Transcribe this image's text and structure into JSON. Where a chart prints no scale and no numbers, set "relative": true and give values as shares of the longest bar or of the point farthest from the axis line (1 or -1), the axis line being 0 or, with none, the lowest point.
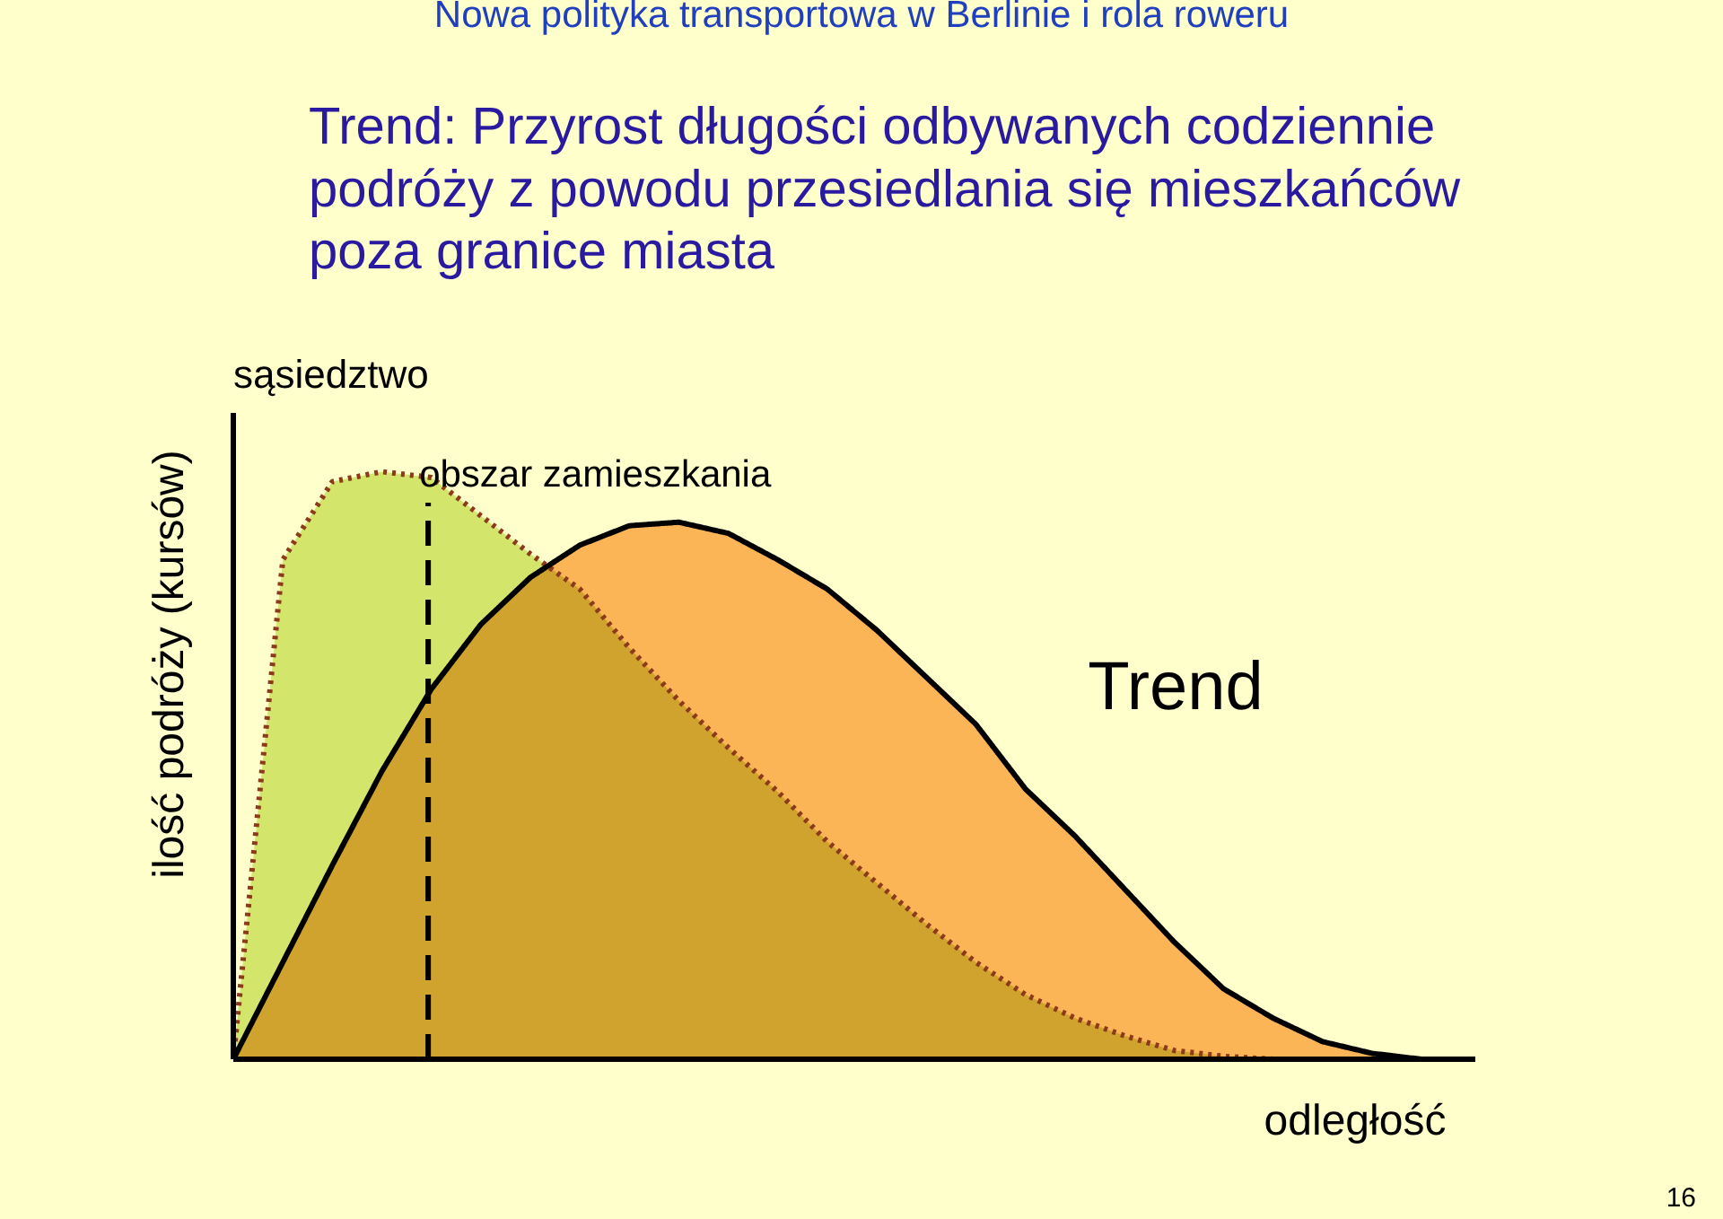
{
  "chart_data": {
    "type": "area",
    "title": "Nowa polityka transportowa w Berlinie i rola roweru",
    "subtitle": "Trend: Przyrost długości odbywanych codziennie\npodróży z powodu przesiedlania się mieszkańców\npoza granice miasta",
    "xlabel": "odległość",
    "ylabel": "ilość podróży (kursów)",
    "relative": true,
    "categories": [
      null,
      null,
      null,
      null,
      null,
      null,
      null,
      null,
      null,
      null,
      null,
      null,
      null,
      null,
      null,
      null,
      null,
      null,
      null,
      null,
      null,
      null,
      null,
      null,
      null
    ],
    "series": [
      {
        "color": "#d4e56c",
        "line_style": "dotted",
        "values": [
          0,
          0.85,
          0.983,
          1,
          0.99,
          0.925,
          0.86,
          0.8,
          0.7,
          0.61,
          0.53,
          0.455,
          0.37,
          0.3,
          0.23,
          0.165,
          0.11,
          0.07,
          0.04,
          0.015,
          0.005,
          0,
          0,
          0,
          0
        ]
      },
      {
        "color": "#fbb56c",
        "line_style": "solid",
        "values": [
          0,
          0.165,
          0.33,
          0.49,
          0.63,
          0.74,
          0.82,
          0.875,
          0.908,
          0.914,
          0.895,
          0.85,
          0.8,
          0.73,
          0.65,
          0.57,
          0.46,
          0.38,
          0.29,
          0.2,
          0.12,
          0.07,
          0.03,
          0.01,
          0
        ]
      }
    ],
    "ref_lines": [
      {
        "axis": "x",
        "label": "obszar zamieszkania",
        "line_style": "dashed"
      }
    ],
    "annotations": [
      "sąsiedztwo",
      "Trend",
      "16"
    ]
  }
}
